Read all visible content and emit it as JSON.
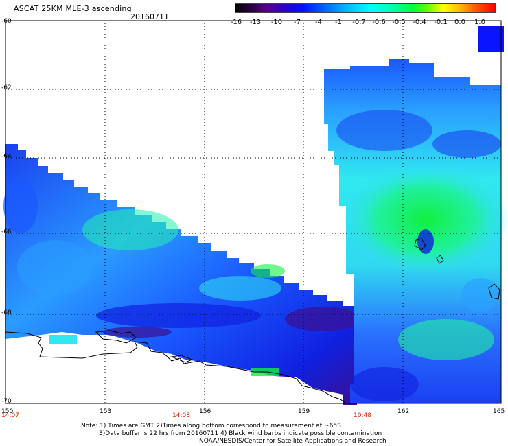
{
  "header": {
    "title": "ASCAT 25KM MLE-3 ascending",
    "date": "20160711"
  },
  "colorbar": {
    "labels": [
      "-16",
      "-13",
      "-10",
      "-7",
      "-4",
      "-1",
      "-0.7",
      "-0.6",
      "-0.5",
      "-0.4",
      "-0.1",
      "0.0",
      "1.0"
    ],
    "swatch_color": "#0a14ff"
  },
  "map": {
    "y_labels": [
      "-60",
      "-62",
      "-64",
      "-66",
      "-68",
      "-70"
    ],
    "x_labels": [
      "150",
      "153",
      "156",
      "159",
      "162",
      "165"
    ],
    "time_labels": [
      "14:07",
      "14:08",
      "10:48"
    ],
    "time_color": "#e02000",
    "field_colors": {
      "dark": "#3a1090",
      "deep_blue": "#1020f0",
      "blue": "#1a58ff",
      "mid": "#2aa0ff",
      "cyan": "#30e8f0",
      "aqua": "#20f0b0",
      "green": "#10f040"
    }
  },
  "footer": {
    "line1": "Note: 1) Times are GMT 2)Times along bottom correspond to measurement at ~65S",
    "line2": "3)Data buffer is 22 hrs from 20160711 4) Black wind barbs indicate possible contamination",
    "line3": "NOAA/NESDIS/Center for Satellite Applications and Research"
  }
}
